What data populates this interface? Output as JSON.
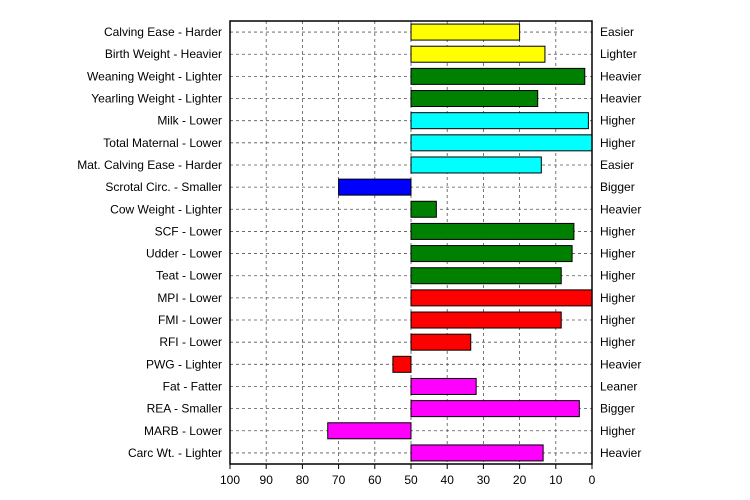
{
  "chart_data": {
    "type": "bar",
    "orientation": "horizontal",
    "title": "",
    "xlabel": "",
    "ylabel": "",
    "xlim": [
      100,
      0
    ],
    "x_ticks": [
      100,
      90,
      80,
      70,
      60,
      50,
      40,
      30,
      20,
      10,
      0
    ],
    "baseline": 50,
    "grid": true,
    "bars": [
      {
        "left_label": "Calving Ease - Harder",
        "right_label": "Easier",
        "value": 20,
        "color": "#ffff00"
      },
      {
        "left_label": "Birth Weight - Heavier",
        "right_label": "Lighter",
        "value": 13,
        "color": "#ffff00"
      },
      {
        "left_label": "Weaning Weight - Lighter",
        "right_label": "Heavier",
        "value": 2,
        "color": "#008000"
      },
      {
        "left_label": "Yearling Weight - Lighter",
        "right_label": "Heavier",
        "value": 15,
        "color": "#008000"
      },
      {
        "left_label": "Milk - Lower",
        "right_label": "Higher",
        "value": 1,
        "color": "#00ffff"
      },
      {
        "left_label": "Total Maternal - Lower",
        "right_label": "Higher",
        "value": 0,
        "color": "#00ffff"
      },
      {
        "left_label": "Mat. Calving Ease - Harder",
        "right_label": "Easier",
        "value": 14,
        "color": "#00ffff"
      },
      {
        "left_label": "Scrotal Circ. - Smaller",
        "right_label": "Bigger",
        "value": 70,
        "color": "#0000ff"
      },
      {
        "left_label": "Cow Weight - Lighter",
        "right_label": "Heavier",
        "value": 43,
        "color": "#008000"
      },
      {
        "left_label": "SCF - Lower",
        "right_label": "Higher",
        "value": 5,
        "color": "#008000"
      },
      {
        "left_label": "Udder - Lower",
        "right_label": "Higher",
        "value": 5.5,
        "color": "#008000"
      },
      {
        "left_label": "Teat - Lower",
        "right_label": "Higher",
        "value": 8.5,
        "color": "#008000"
      },
      {
        "left_label": "MPI - Lower",
        "right_label": "Higher",
        "value": 0,
        "color": "#ff0000"
      },
      {
        "left_label": "FMI - Lower",
        "right_label": "Higher",
        "value": 8.5,
        "color": "#ff0000"
      },
      {
        "left_label": "RFI - Lower",
        "right_label": "Higher",
        "value": 33.5,
        "color": "#ff0000"
      },
      {
        "left_label": "PWG - Lighter",
        "right_label": "Heavier",
        "value": 55,
        "color": "#ff0000"
      },
      {
        "left_label": "Fat - Fatter",
        "right_label": "Leaner",
        "value": 32,
        "color": "#ff00ff"
      },
      {
        "left_label": "REA - Smaller",
        "right_label": "Bigger",
        "value": 3.5,
        "color": "#ff00ff"
      },
      {
        "left_label": "MARB - Lower",
        "right_label": "Higher",
        "value": 73,
        "color": "#ff00ff"
      },
      {
        "left_label": "Carc Wt. - Lighter",
        "right_label": "Heavier",
        "value": 13.5,
        "color": "#ff00ff"
      }
    ]
  }
}
